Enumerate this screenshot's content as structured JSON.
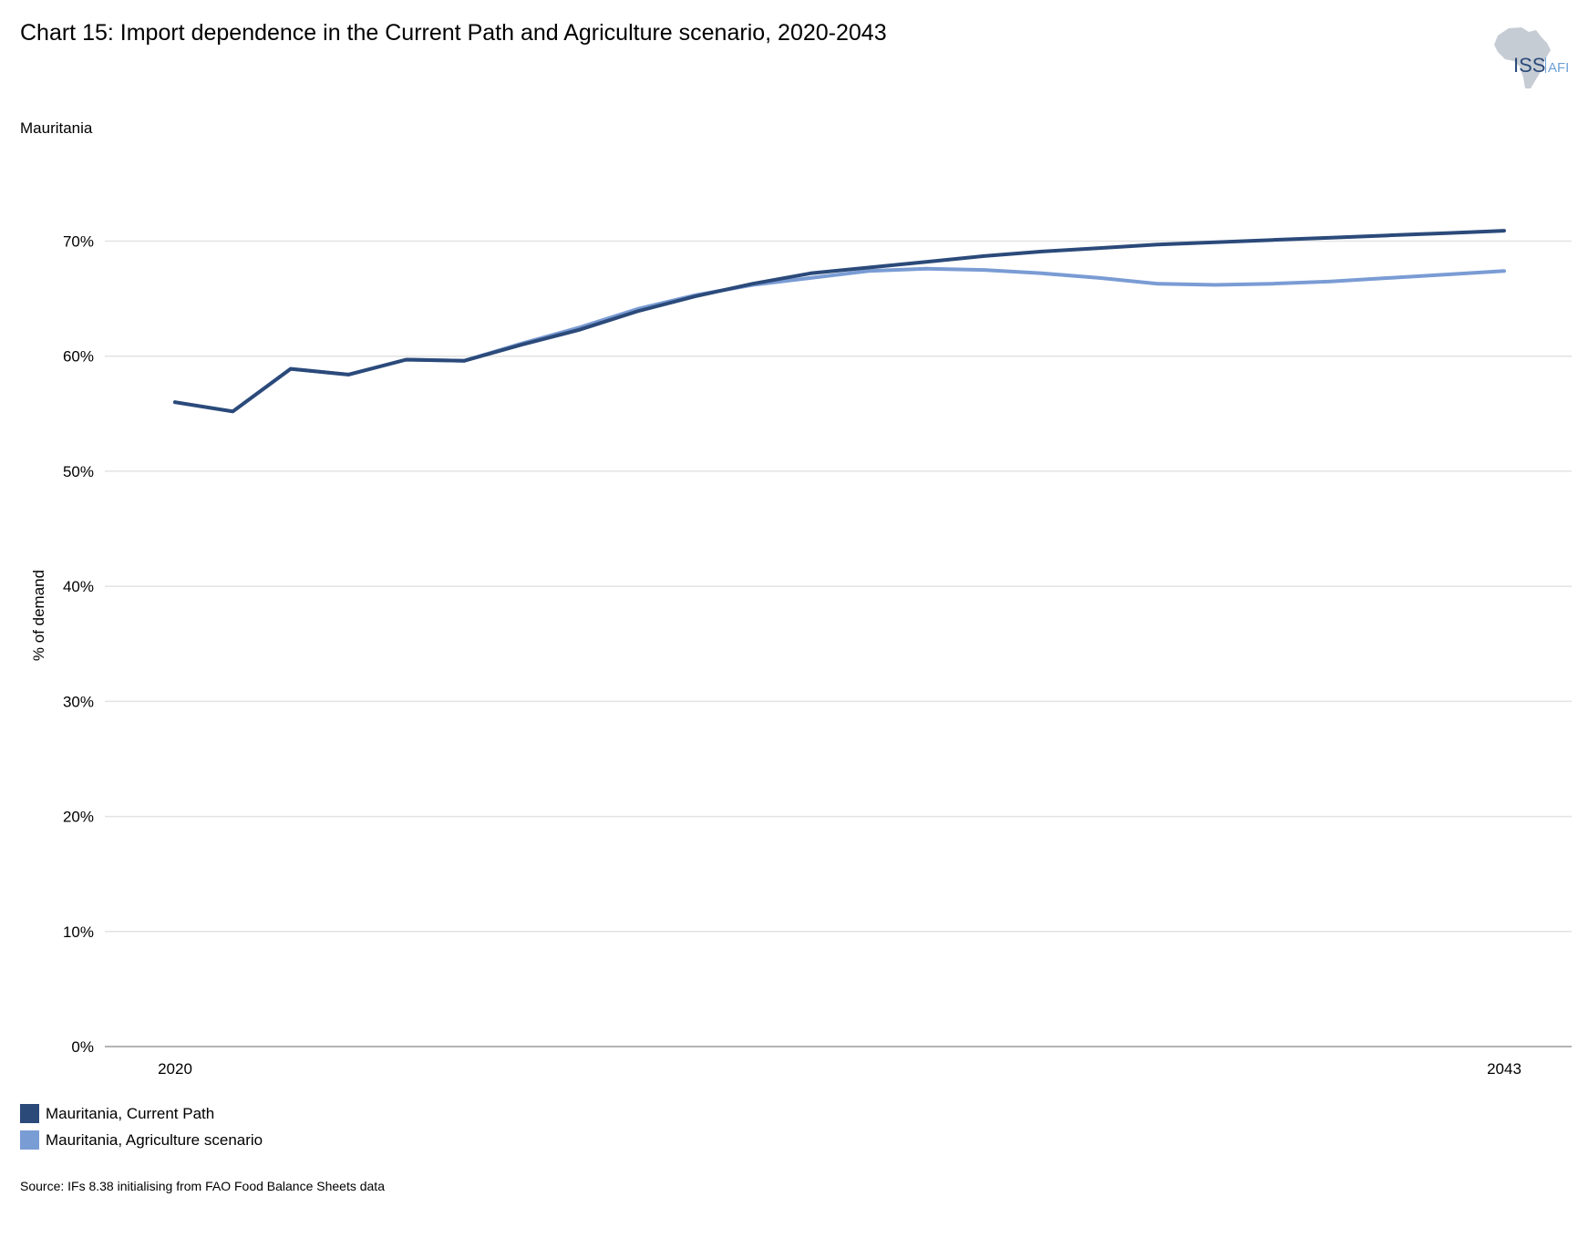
{
  "title": "Chart 15: Import dependence in the Current Path and Agriculture scenario, 2020-2043",
  "subtitle": "Mauritania",
  "logo": {
    "main": "ISS",
    "sub": "AFI"
  },
  "source": "Source: IFs 8.38 initialising from FAO Food Balance Sheets data",
  "colors": {
    "current_path": "#2b4a7a",
    "agriculture": "#7a9cd4",
    "grid": "#e3e3e3",
    "axis": "#9a9a9a"
  },
  "chart_data": {
    "type": "line",
    "title": "Chart 15: Import dependence in the Current Path and Agriculture scenario, 2020-2043",
    "xlabel": "",
    "ylabel": "% of demand",
    "x": [
      2020,
      2021,
      2022,
      2023,
      2024,
      2025,
      2026,
      2027,
      2028,
      2029,
      2030,
      2031,
      2032,
      2033,
      2034,
      2035,
      2036,
      2037,
      2038,
      2039,
      2040,
      2041,
      2042,
      2043
    ],
    "x_tick_labels": [
      "2020",
      "2043"
    ],
    "y_tick_labels": [
      "0%",
      "10%",
      "20%",
      "30%",
      "40%",
      "50%",
      "60%",
      "70%"
    ],
    "ylim": [
      0,
      70
    ],
    "grid": true,
    "legend_position": "bottom-left",
    "series": [
      {
        "name": "Mauritania, Current Path",
        "values": [
          56.0,
          55.2,
          58.9,
          58.4,
          59.7,
          59.6,
          61.0,
          62.3,
          63.9,
          65.2,
          66.3,
          67.2,
          67.7,
          68.2,
          68.7,
          69.1,
          69.4,
          69.7,
          69.9,
          70.1,
          70.3,
          70.5,
          70.7,
          70.9
        ]
      },
      {
        "name": "Mauritania, Agriculture scenario",
        "values": [
          56.0,
          55.2,
          58.9,
          58.4,
          59.7,
          59.6,
          61.1,
          62.5,
          64.1,
          65.3,
          66.2,
          66.8,
          67.4,
          67.6,
          67.5,
          67.2,
          66.8,
          66.3,
          66.2,
          66.3,
          66.5,
          66.8,
          67.1,
          67.4
        ]
      }
    ]
  }
}
